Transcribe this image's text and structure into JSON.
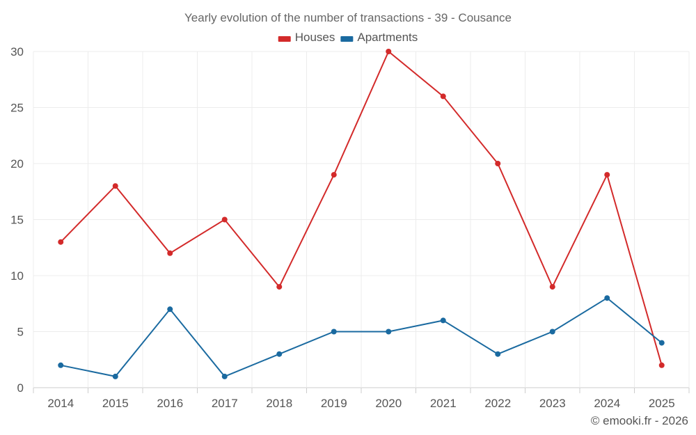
{
  "chart_data": {
    "type": "line",
    "title": "Yearly evolution of the number of transactions - 39 - Cousance",
    "categories": [
      "2014",
      "2015",
      "2016",
      "2017",
      "2018",
      "2019",
      "2020",
      "2021",
      "2022",
      "2023",
      "2024",
      "2025"
    ],
    "series": [
      {
        "name": "Houses",
        "color": "#d32a2a",
        "values": [
          13,
          18,
          12,
          15,
          9,
          19,
          30,
          26,
          20,
          9,
          19,
          2
        ]
      },
      {
        "name": "Apartments",
        "color": "#1a6aa0",
        "values": [
          2,
          1,
          7,
          1,
          3,
          5,
          5,
          6,
          3,
          5,
          8,
          4
        ]
      }
    ],
    "ylim": [
      0,
      30
    ],
    "yticks": [
      0,
      5,
      10,
      15,
      20,
      25,
      30
    ],
    "xlabel": "",
    "ylabel": "",
    "grid": true,
    "legend_position": "top-center"
  },
  "credit": "© emooki.fr - 2026"
}
